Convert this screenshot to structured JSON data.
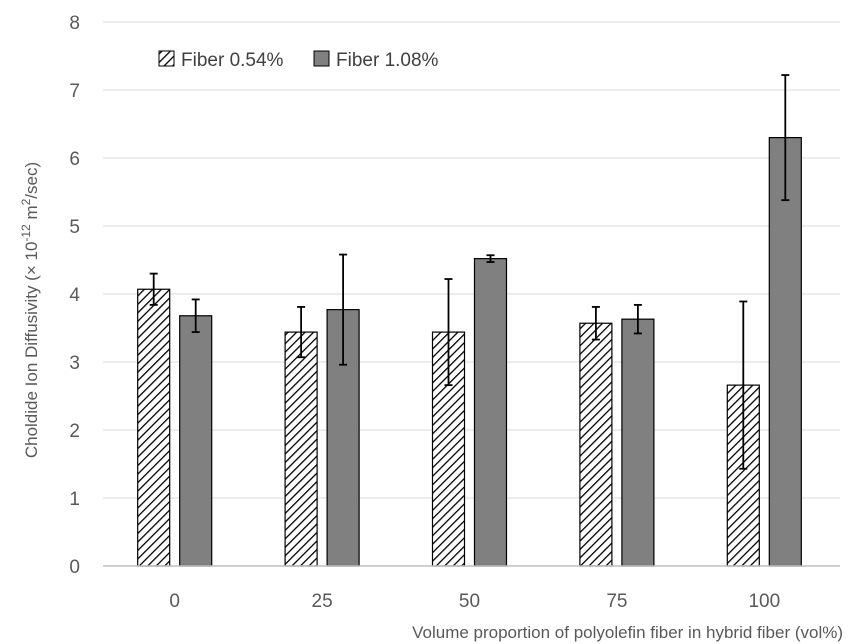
{
  "chart_data": {
    "type": "bar",
    "categories": [
      "0",
      "25",
      "50",
      "75",
      "100"
    ],
    "series": [
      {
        "name": "Fiber 0.54%",
        "values": [
          4.07,
          3.44,
          3.44,
          3.57,
          2.66
        ],
        "errors": [
          0.23,
          0.37,
          0.78,
          0.24,
          1.23
        ],
        "pattern": "hatched",
        "color": "#000000"
      },
      {
        "name": "Fiber 1.08%",
        "values": [
          3.68,
          3.77,
          4.52,
          3.63,
          6.3
        ],
        "errors": [
          0.24,
          0.81,
          0.05,
          0.21,
          0.92
        ],
        "pattern": "solid",
        "color": "#808080"
      }
    ],
    "ylim": [
      0,
      8
    ],
    "yticks": [
      "0",
      "1",
      "2",
      "3",
      "4",
      "5",
      "6",
      "7",
      "8"
    ],
    "grid": true,
    "legend_position": "top-left",
    "xlabel": "Volume proportion of polyolefin fiber in hybrid fiber (vol%)",
    "ylabel": "Cholride Ion Diffusivity (× 10⁻¹² m²/sec)",
    "ylabel_parts": {
      "prefix": "Choldide Ion Diffusivity (× 10",
      "exp": "-12",
      "mid": " m",
      "sup2": "2",
      "suffix": "/sec)"
    }
  }
}
